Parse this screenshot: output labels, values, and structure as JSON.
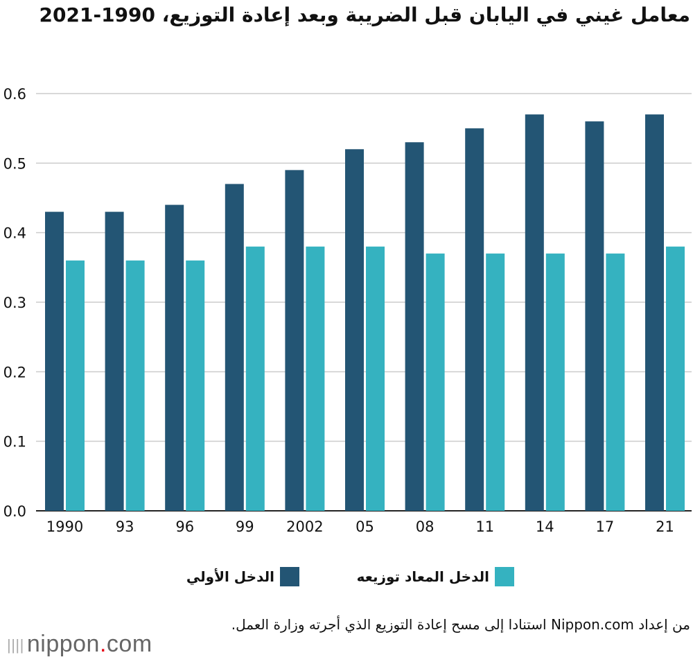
{
  "chart_data": {
    "type": "bar",
    "title": "معامل غيني في اليابان قبل الضريبة وبعد إعادة التوزيع، 1990-2021",
    "categories": [
      "1990",
      "93",
      "96",
      "99",
      "2002",
      "05",
      "08",
      "11",
      "14",
      "17",
      "21"
    ],
    "series": [
      {
        "name": "الدخل الأولي",
        "color": "#235574",
        "values": [
          0.43,
          0.43,
          0.44,
          0.47,
          0.49,
          0.52,
          0.53,
          0.55,
          0.57,
          0.56,
          0.57
        ]
      },
      {
        "name": "الدخل المعاد توزيعه",
        "color": "#35b2c0",
        "values": [
          0.36,
          0.36,
          0.36,
          0.38,
          0.38,
          0.38,
          0.37,
          0.37,
          0.37,
          0.37,
          0.38
        ]
      }
    ],
    "ylim": [
      0,
      0.6
    ],
    "yticks": [
      "0.0",
      "0.1",
      "0.2",
      "0.3",
      "0.4",
      "0.5",
      "0.6"
    ],
    "grid": true,
    "legend_placement": "bottom"
  },
  "source": "من إعداد Nippon.com استنادا إلى مسح إعادة التوزيع الذي أجرته وزارة العمل.",
  "logo": {
    "text": "nippon",
    "dot": ".",
    "suffix": "com"
  }
}
